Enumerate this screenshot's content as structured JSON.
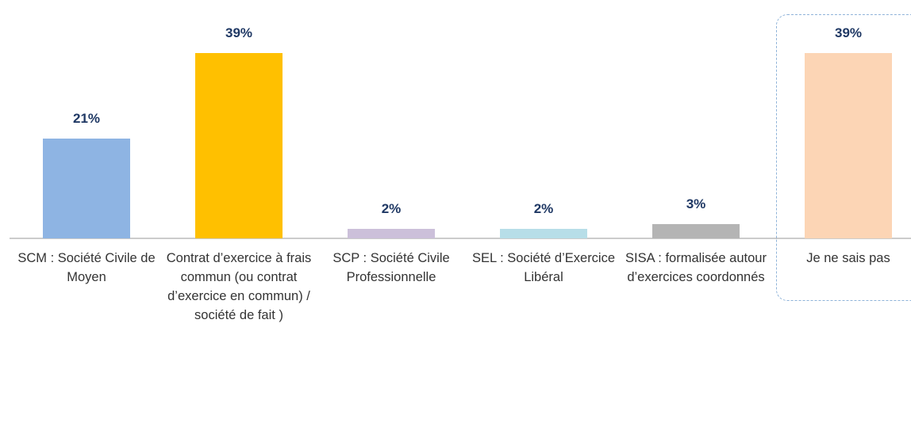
{
  "chart_data": {
    "type": "bar",
    "categories": [
      "SCM : Société Civile de Moyen",
      "Contrat d’exercice à frais commun (ou contrat d’exercice en commun) / société de fait )",
      "SCP : Société Civile Professionnelle",
      "SEL : Société d’Exercice Libéral",
      "SISA : formalisée autour d’exercices coordonnés",
      "Je ne sais pas"
    ],
    "values": [
      21,
      39,
      2,
      2,
      3,
      39
    ],
    "value_labels": [
      "21%",
      "39%",
      "2%",
      "2%",
      "3%",
      "39%"
    ],
    "colors": [
      "#8eb4e3",
      "#ffc000",
      "#ccc0da",
      "#b7dee8",
      "#b4b4b4",
      "#fcd5b5"
    ]
  }
}
